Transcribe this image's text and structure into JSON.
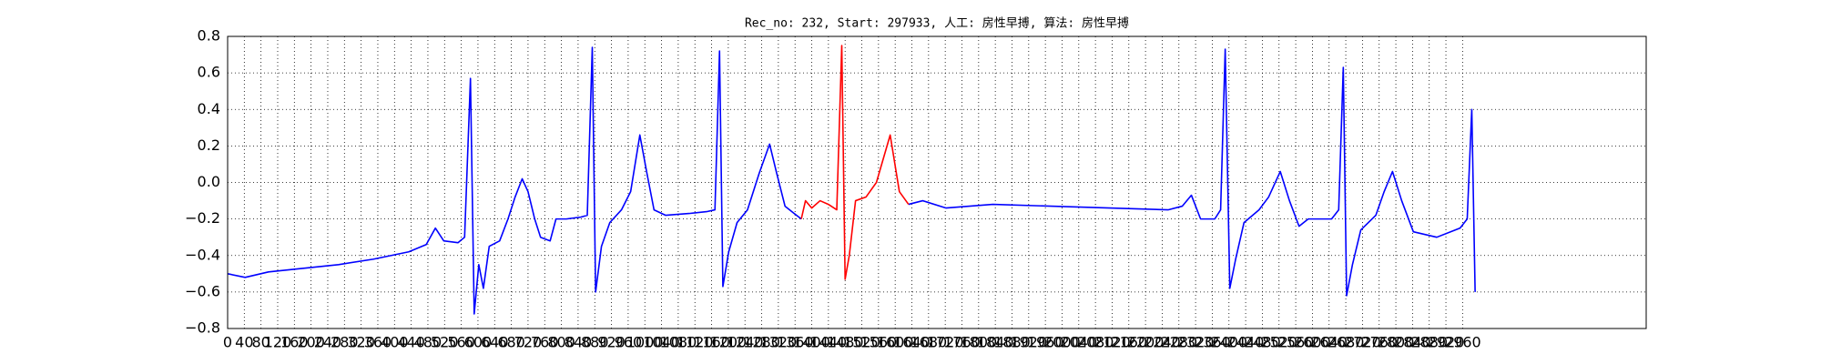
{
  "chart_data": {
    "type": "line",
    "title": "Rec_no: 232, Start: 297933, 人工: 房性早搏, 算法: 房性早搏",
    "series": [
      {
        "color": "#0000ff",
        "x": [
          0,
          42,
          98,
          182,
          266,
          350,
          434,
          476,
          498,
          518,
          552,
          568,
          582,
          591,
          602,
          613,
          627,
          652,
          672,
          689,
          706,
          720,
          736,
          750,
          773,
          787,
          812,
          846,
          862,
          874,
          882,
          896,
          916,
          944,
          966,
          988,
          1005,
          1022,
          1050,
          1106,
          1148,
          1168,
          1179,
          1187,
          1201,
          1221,
          1246,
          1274,
          1299,
          1316,
          1336,
          1358,
          1375,
          1500,
          1632,
          1666,
          1722,
          1834,
          1974,
          2114,
          2254,
          2288,
          2310,
          2332,
          2366,
          2380,
          2391,
          2402,
          2416,
          2436,
          2472,
          2495,
          2523,
          2545,
          2568,
          2590,
          2646,
          2663,
          2674,
          2682,
          2696,
          2716,
          2752,
          2772,
          2792,
          2814,
          2842,
          2898,
          2954,
          2971,
          2982,
          2990
        ],
        "values": [
          -0.5,
          -0.52,
          -0.49,
          -0.47,
          -0.45,
          -0.42,
          -0.38,
          -0.34,
          -0.25,
          -0.32,
          -0.33,
          -0.3,
          0.57,
          -0.72,
          -0.45,
          -0.58,
          -0.35,
          -0.32,
          -0.2,
          -0.08,
          0.02,
          -0.05,
          -0.2,
          -0.3,
          -0.32,
          -0.2,
          -0.2,
          -0.19,
          -0.18,
          0.74,
          -0.6,
          -0.35,
          -0.22,
          -0.15,
          -0.05,
          0.26,
          0.05,
          -0.15,
          -0.18,
          -0.17,
          -0.16,
          -0.15,
          0.72,
          -0.57,
          -0.38,
          -0.22,
          -0.15,
          0.05,
          0.21,
          0.05,
          -0.13,
          -0.17,
          -0.2,
          null,
          -0.12,
          -0.1,
          -0.14,
          -0.12,
          -0.13,
          -0.14,
          -0.15,
          -0.13,
          -0.07,
          -0.2,
          -0.2,
          -0.15,
          0.73,
          -0.58,
          -0.42,
          -0.22,
          -0.15,
          -0.08,
          0.06,
          -0.1,
          -0.24,
          -0.2,
          -0.2,
          -0.15,
          0.63,
          -0.62,
          -0.45,
          -0.26,
          -0.18,
          -0.05,
          0.06,
          -0.1,
          -0.27,
          -0.3,
          -0.25,
          -0.2,
          0.4,
          -0.6
        ]
      },
      {
        "color": "#ff0000",
        "x": [
          1375,
          1385,
          1400,
          1420,
          1440,
          1460,
          1472,
          1480,
          1490,
          1505,
          1530,
          1555,
          1588,
          1610,
          1632
        ],
        "values": [
          -0.2,
          -0.1,
          -0.14,
          -0.1,
          -0.12,
          -0.15,
          0.75,
          -0.53,
          -0.4,
          -0.1,
          -0.08,
          0.0,
          0.26,
          -0.05,
          -0.12
        ]
      }
    ],
    "xlim": [
      0,
      3400
    ],
    "ylim": [
      -0.8,
      0.8
    ],
    "xticks": [
      0,
      40,
      80,
      120,
      160,
      200,
      240,
      280,
      320,
      360,
      400,
      440,
      480,
      520,
      560,
      600,
      640,
      680,
      720,
      760,
      800,
      840,
      880,
      920,
      960,
      1000,
      1040,
      1080,
      1120,
      1160,
      1200,
      1240,
      1280,
      1320,
      1360,
      1400,
      1440,
      1480,
      1520,
      1560,
      1600,
      1640,
      1680,
      1720,
      1760,
      1800,
      1840,
      1880,
      1920,
      1960,
      2000,
      2040,
      2080,
      2120,
      2160,
      2200,
      2240,
      2280,
      2320,
      2360,
      2400,
      2440,
      2480,
      2520,
      2560,
      2600,
      2640,
      2680,
      2720,
      2760,
      2800,
      2840,
      2880,
      2920,
      2960
    ],
    "yticks": [
      {
        "value": -0.8,
        "label": "−0.8"
      },
      {
        "value": -0.6,
        "label": "−0.6"
      },
      {
        "value": -0.4,
        "label": "−0.4"
      },
      {
        "value": -0.2,
        "label": "−0.2"
      },
      {
        "value": 0,
        "label": "0.0"
      },
      0.2,
      0.4,
      0.6,
      0.8
    ],
    "grid": true
  }
}
